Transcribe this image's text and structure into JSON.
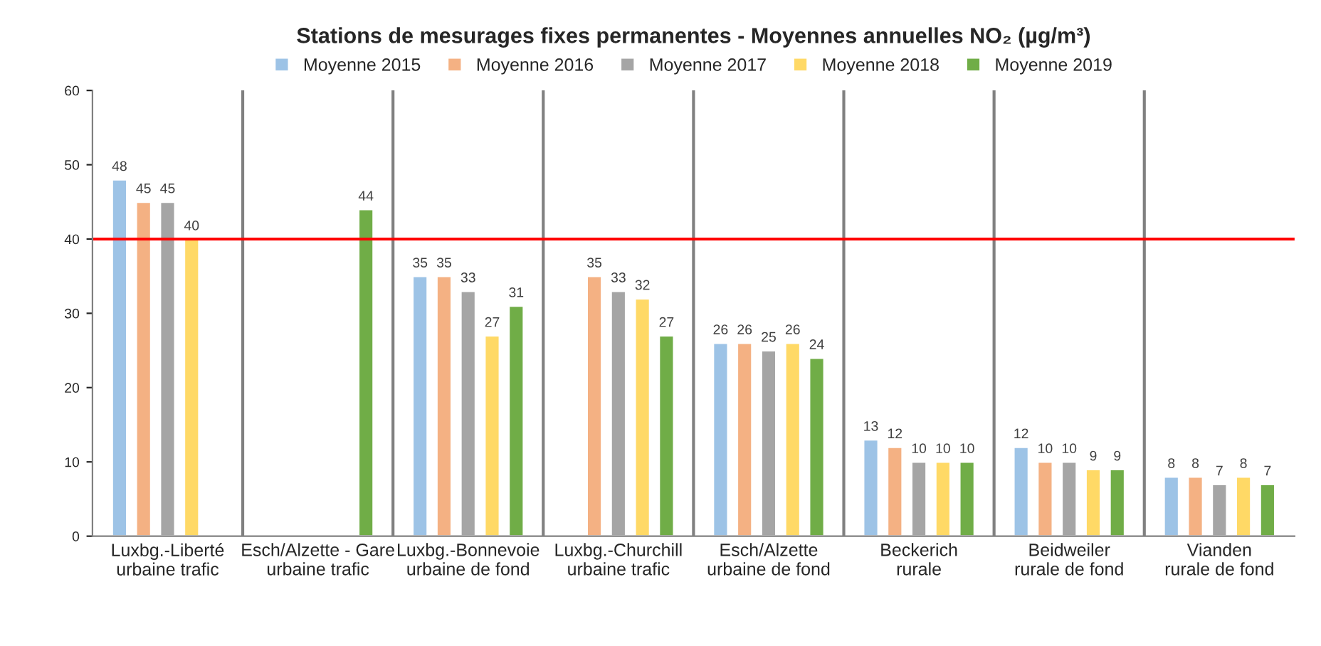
{
  "chart_data": {
    "type": "bar",
    "title": "Stations de mesurages fixes permanentes - Moyennes annuelles NO₂ (µg/m³)",
    "categories": [
      "Luxbg.-Liberté\nurbaine trafic",
      "Esch/Alzette - Gare\nurbaine trafic",
      "Luxbg.-Bonnevoie\nurbaine de fond",
      "Luxbg.-Churchill\nurbaine trafic",
      "Esch/Alzette\nurbaine de fond",
      "Beckerich\nrurale",
      "Beidweiler\nrurale de fond",
      "Vianden\nrurale de fond"
    ],
    "series": [
      {
        "name": "Moyenne 2015",
        "color": "#9dc3e6",
        "values": [
          48,
          null,
          35,
          null,
          26,
          13,
          12,
          8
        ]
      },
      {
        "name": "Moyenne 2016",
        "color": "#f4b183",
        "values": [
          45,
          null,
          35,
          35,
          26,
          12,
          10,
          8
        ]
      },
      {
        "name": "Moyenne 2017",
        "color": "#a5a5a5",
        "values": [
          45,
          null,
          33,
          33,
          25,
          10,
          10,
          7
        ]
      },
      {
        "name": "Moyenne 2018",
        "color": "#ffd966",
        "values": [
          40,
          null,
          27,
          32,
          26,
          10,
          9,
          8
        ]
      },
      {
        "name": "Moyenne 2019",
        "color": "#70ad47",
        "values": [
          null,
          44,
          31,
          27,
          24,
          10,
          9,
          7
        ]
      }
    ],
    "ylim": [
      0,
      60
    ],
    "yticks": [
      0,
      10,
      20,
      30,
      40,
      50,
      60
    ],
    "ref_lines": [
      {
        "axis": "y",
        "value": 40,
        "color": "#ff0000"
      }
    ],
    "data_labels": true,
    "legend": "top",
    "grid": "x"
  }
}
